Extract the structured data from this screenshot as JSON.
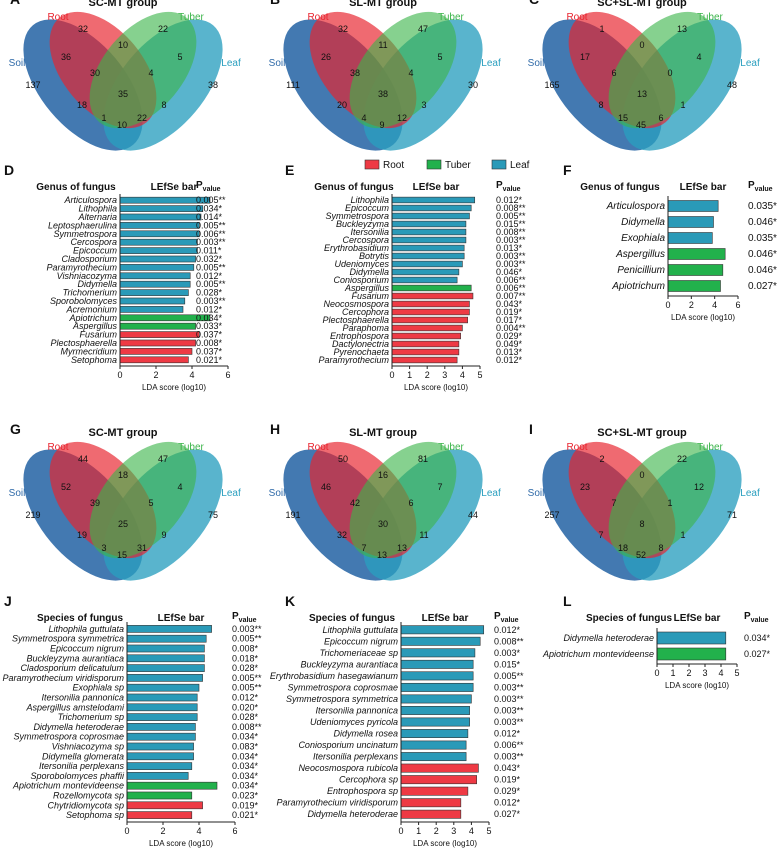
{
  "colors": {
    "root": "#e8232e",
    "tuber": "#3cb44a",
    "leaf": "#2a9fbf",
    "soil": "#2f6aa8",
    "bar_leaf": "#2a9ab8",
    "bar_tuber": "#22b14c",
    "bar_root": "#ee3a44"
  },
  "legend": {
    "root": "Root",
    "tuber": "Tuber",
    "leaf": "Leaf"
  },
  "chart_data": [
    {
      "type": "venn",
      "panel": "A",
      "title": "SC-MT group",
      "sets": {
        "root": "Root",
        "tuber": "Tuber",
        "soil": "Soil",
        "leaf": "Leaf"
      },
      "regions": {
        "root_only": "32",
        "tuber_only": "22",
        "soil_only": "137",
        "leaf_only": "38",
        "root_tuber": "10",
        "root_soil": "36",
        "tuber_leaf": "5",
        "soil_leaf": "10",
        "root_leaf": "8",
        "tuber_soil": "18",
        "root_tuber_soil": "30",
        "root_tuber_leaf": "4",
        "root_soil_leaf": "22",
        "tuber_soil_leaf": "1",
        "all": "35"
      }
    },
    {
      "type": "venn",
      "panel": "B",
      "title": "SL-MT group",
      "sets": {
        "root": "Root",
        "tuber": "Tuber",
        "soil": "Soil",
        "leaf": "Leaf"
      },
      "regions": {
        "root_only": "32",
        "tuber_only": "47",
        "soil_only": "111",
        "leaf_only": "30",
        "root_tuber": "11",
        "root_soil": "26",
        "tuber_leaf": "5",
        "soil_leaf": "9",
        "root_leaf": "3",
        "tuber_soil": "20",
        "root_tuber_soil": "38",
        "root_tuber_leaf": "4",
        "root_soil_leaf": "12",
        "tuber_soil_leaf": "4",
        "all": "38"
      }
    },
    {
      "type": "venn",
      "panel": "C",
      "title": "SC+SL-MT group",
      "sets": {
        "root": "Root",
        "tuber": "Tuber",
        "soil": "Soil",
        "leaf": "Leaf"
      },
      "regions": {
        "root_only": "1",
        "tuber_only": "13",
        "soil_only": "165",
        "leaf_only": "48",
        "root_tuber": "0",
        "root_soil": "17",
        "tuber_leaf": "4",
        "soil_leaf": "45",
        "root_leaf": "1",
        "tuber_soil": "8",
        "root_tuber_soil": "6",
        "root_tuber_leaf": "0",
        "root_soil_leaf": "6",
        "tuber_soil_leaf": "15",
        "all": "13"
      }
    },
    {
      "type": "venn",
      "panel": "G",
      "title": "SC-MT group",
      "sets": {
        "root": "Root",
        "tuber": "Tuber",
        "soil": "Soil",
        "leaf": "Leaf"
      },
      "regions": {
        "root_only": "44",
        "tuber_only": "47",
        "soil_only": "219",
        "leaf_only": "75",
        "root_tuber": "18",
        "root_soil": "52",
        "tuber_leaf": "4",
        "soil_leaf": "15",
        "root_leaf": "9",
        "tuber_soil": "19",
        "root_tuber_soil": "39",
        "root_tuber_leaf": "5",
        "root_soil_leaf": "31",
        "tuber_soil_leaf": "3",
        "all": "25"
      }
    },
    {
      "type": "venn",
      "panel": "H",
      "title": "SL-MT group",
      "sets": {
        "root": "Root",
        "tuber": "Tuber",
        "soil": "Soil",
        "leaf": "Leaf"
      },
      "regions": {
        "root_only": "50",
        "tuber_only": "81",
        "soil_only": "191",
        "leaf_only": "44",
        "root_tuber": "16",
        "root_soil": "46",
        "tuber_leaf": "7",
        "soil_leaf": "13",
        "root_leaf": "11",
        "tuber_soil": "32",
        "root_tuber_soil": "42",
        "root_tuber_leaf": "6",
        "root_soil_leaf": "13",
        "tuber_soil_leaf": "7",
        "all": "30"
      }
    },
    {
      "type": "venn",
      "panel": "I",
      "title": "SC+SL-MT group",
      "sets": {
        "root": "Root",
        "tuber": "Tuber",
        "soil": "Soil",
        "leaf": "Leaf"
      },
      "regions": {
        "root_only": "2",
        "tuber_only": "22",
        "soil_only": "257",
        "leaf_only": "71",
        "root_tuber": "0",
        "root_soil": "23",
        "tuber_leaf": "12",
        "soil_leaf": "52",
        "root_leaf": "1",
        "tuber_soil": "7",
        "root_tuber_soil": "7",
        "root_tuber_leaf": "1",
        "root_soil_leaf": "8",
        "tuber_soil_leaf": "18",
        "all": "8"
      }
    },
    {
      "type": "bar",
      "panel": "D",
      "orientation": "horizontal",
      "header": "Genus of fungus",
      "bar_header": "LEfSe bar",
      "p_header": "P",
      "p_sub": "value",
      "xlabel": "LDA score (log10)",
      "xlim": [
        0,
        6
      ],
      "ticks": [
        "0",
        "2",
        "4",
        "6"
      ],
      "rows": [
        {
          "name": "Articulospora",
          "value": 5.0,
          "group": "leaf",
          "p": "0.005**"
        },
        {
          "name": "Lithophila",
          "value": 4.6,
          "group": "leaf",
          "p": "0.034*"
        },
        {
          "name": "Alternaria",
          "value": 4.5,
          "group": "leaf",
          "p": "0.014*"
        },
        {
          "name": "Leptosphaerulina",
          "value": 4.4,
          "group": "leaf",
          "p": "0.005**"
        },
        {
          "name": "Symmetrospora",
          "value": 4.4,
          "group": "leaf",
          "p": "0.006**"
        },
        {
          "name": "Cercospora",
          "value": 4.3,
          "group": "leaf",
          "p": "0.003**"
        },
        {
          "name": "Epicoccum",
          "value": 4.3,
          "group": "leaf",
          "p": "0.011*"
        },
        {
          "name": "Cladosporium",
          "value": 4.2,
          "group": "leaf",
          "p": "0.032*"
        },
        {
          "name": "Paramyrothecium",
          "value": 4.1,
          "group": "leaf",
          "p": "0.005**"
        },
        {
          "name": "Vishniacozyma",
          "value": 3.9,
          "group": "leaf",
          "p": "0.012*"
        },
        {
          "name": "Didymella",
          "value": 3.9,
          "group": "leaf",
          "p": "0.005**"
        },
        {
          "name": "Trichomerium",
          "value": 3.8,
          "group": "leaf",
          "p": "0.028*"
        },
        {
          "name": "Sporobolomyces",
          "value": 3.6,
          "group": "leaf",
          "p": "0.003**"
        },
        {
          "name": "Acremonium",
          "value": 3.5,
          "group": "leaf",
          "p": "0.012*"
        },
        {
          "name": "Apiotrichum",
          "value": 5.0,
          "group": "tuber",
          "p": "0.034*"
        },
        {
          "name": "Aspergillus",
          "value": 4.2,
          "group": "tuber",
          "p": "0.033*"
        },
        {
          "name": "Fusarium",
          "value": 4.4,
          "group": "root",
          "p": "0.037*"
        },
        {
          "name": "Plectosphaerella",
          "value": 4.2,
          "group": "root",
          "p": "0.008*"
        },
        {
          "name": "Myrmecridium",
          "value": 4.0,
          "group": "root",
          "p": "0.037*"
        },
        {
          "name": "Setophoma",
          "value": 3.8,
          "group": "root",
          "p": "0.021*"
        }
      ]
    },
    {
      "type": "bar",
      "panel": "E",
      "orientation": "horizontal",
      "header": "Genus of fungus",
      "bar_header": "LEfSe bar",
      "p_header": "P",
      "p_sub": "value",
      "xlabel": "LDA score (log10)",
      "xlim": [
        0,
        5
      ],
      "ticks": [
        "0",
        "1",
        "2",
        "3",
        "4",
        "5"
      ],
      "rows": [
        {
          "name": "Lithophila",
          "value": 4.7,
          "group": "leaf",
          "p": "0.012*"
        },
        {
          "name": "Epicoccum",
          "value": 4.5,
          "group": "leaf",
          "p": "0.008**"
        },
        {
          "name": "Symmetrospora",
          "value": 4.4,
          "group": "leaf",
          "p": "0.005**"
        },
        {
          "name": "Buckleyzyma",
          "value": 4.2,
          "group": "leaf",
          "p": "0.015**"
        },
        {
          "name": "Itersonilia",
          "value": 4.2,
          "group": "leaf",
          "p": "0.008**"
        },
        {
          "name": "Cercospora",
          "value": 4.2,
          "group": "leaf",
          "p": "0.003**"
        },
        {
          "name": "Erythrobasidium",
          "value": 4.1,
          "group": "leaf",
          "p": "0.013*"
        },
        {
          "name": "Botrytis",
          "value": 4.1,
          "group": "leaf",
          "p": "0.003**"
        },
        {
          "name": "Udeniomyces",
          "value": 4.0,
          "group": "leaf",
          "p": "0.003**"
        },
        {
          "name": "Didymella",
          "value": 3.8,
          "group": "leaf",
          "p": "0.046*"
        },
        {
          "name": "Coniosporium",
          "value": 3.7,
          "group": "leaf",
          "p": "0.006**"
        },
        {
          "name": "Aspergillus",
          "value": 4.5,
          "group": "tuber",
          "p": "0.006**"
        },
        {
          "name": "Fusarium",
          "value": 4.6,
          "group": "root",
          "p": "0.007**"
        },
        {
          "name": "Neocosmospora",
          "value": 4.4,
          "group": "root",
          "p": "0.043*"
        },
        {
          "name": "Cercophora",
          "value": 4.4,
          "group": "root",
          "p": "0.019*"
        },
        {
          "name": "Plectosphaerella",
          "value": 4.3,
          "group": "root",
          "p": "0.017*"
        },
        {
          "name": "Paraphoma",
          "value": 4.0,
          "group": "root",
          "p": "0.004**"
        },
        {
          "name": "Entrophospora",
          "value": 3.9,
          "group": "root",
          "p": "0.029*"
        },
        {
          "name": "Dactylonectria",
          "value": 3.8,
          "group": "root",
          "p": "0.049*"
        },
        {
          "name": "Pyrenochaeta",
          "value": 3.8,
          "group": "root",
          "p": "0.013*"
        },
        {
          "name": "Paramyrothecium",
          "value": 3.7,
          "group": "root",
          "p": "0.012*"
        }
      ]
    },
    {
      "type": "bar",
      "panel": "F",
      "orientation": "horizontal",
      "header": "Genus of fungus",
      "bar_header": "LEfSe bar",
      "p_header": "P",
      "p_sub": "value",
      "xlabel": "LDA score (log10)",
      "xlim": [
        0,
        6
      ],
      "ticks": [
        "0",
        "2",
        "4",
        "6"
      ],
      "rows": [
        {
          "name": "Articulospora",
          "value": 4.3,
          "group": "leaf",
          "p": "0.035*"
        },
        {
          "name": "Didymella",
          "value": 3.9,
          "group": "leaf",
          "p": "0.046*"
        },
        {
          "name": "Exophiala",
          "value": 3.8,
          "group": "leaf",
          "p": "0.035*"
        },
        {
          "name": "Aspergillus",
          "value": 4.9,
          "group": "tuber",
          "p": "0.046*"
        },
        {
          "name": "Penicillium",
          "value": 4.7,
          "group": "tuber",
          "p": "0.046*"
        },
        {
          "name": "Apiotrichum",
          "value": 4.5,
          "group": "tuber",
          "p": "0.027*"
        }
      ]
    },
    {
      "type": "bar",
      "panel": "J",
      "orientation": "horizontal",
      "header": "Species of fungus",
      "bar_header": "LEfSe bar",
      "p_header": "P",
      "p_sub": "value",
      "xlabel": "LDA score (log10)",
      "xlim": [
        0,
        6
      ],
      "ticks": [
        "0",
        "2",
        "4",
        "6"
      ],
      "rows": [
        {
          "name": "Lithophila guttulata",
          "value": 4.7,
          "group": "leaf",
          "p": "0.003**"
        },
        {
          "name": "Symmetrospora symmetrica",
          "value": 4.4,
          "group": "leaf",
          "p": "0.005**"
        },
        {
          "name": "Epicoccum nigrum",
          "value": 4.3,
          "group": "leaf",
          "p": "0.008*"
        },
        {
          "name": "Buckleyzyma aurantiaca",
          "value": 4.3,
          "group": "leaf",
          "p": "0.018*"
        },
        {
          "name": "Cladosporium delicatulum",
          "value": 4.3,
          "group": "leaf",
          "p": "0.028*"
        },
        {
          "name": "Paramyrothecium viridisporum",
          "value": 4.2,
          "group": "leaf",
          "p": "0.005**"
        },
        {
          "name": "Exophiala sp",
          "value": 4.0,
          "group": "leaf",
          "p": "0.005**"
        },
        {
          "name": "Itersonilia pannonica",
          "value": 3.9,
          "group": "leaf",
          "p": "0.012*"
        },
        {
          "name": "Aspergillus amstelodami",
          "value": 3.9,
          "group": "leaf",
          "p": "0.020*"
        },
        {
          "name": "Trichomerium sp",
          "value": 3.9,
          "group": "leaf",
          "p": "0.028*"
        },
        {
          "name": "Didymella heteroderae",
          "value": 3.8,
          "group": "leaf",
          "p": "0.008**"
        },
        {
          "name": "Symmetrospora coprosmae",
          "value": 3.8,
          "group": "leaf",
          "p": "0.034*"
        },
        {
          "name": "Vishniacozyma sp",
          "value": 3.7,
          "group": "leaf",
          "p": "0.083*"
        },
        {
          "name": "Didymella glomerata",
          "value": 3.7,
          "group": "leaf",
          "p": "0.034*"
        },
        {
          "name": "Itersonilia perplexans",
          "value": 3.6,
          "group": "leaf",
          "p": "0.034*"
        },
        {
          "name": "Sporobolomyces phaffii",
          "value": 3.4,
          "group": "leaf",
          "p": "0.034*"
        },
        {
          "name": "Apiotrichum montevideense",
          "value": 5.0,
          "group": "tuber",
          "p": "0.034*"
        },
        {
          "name": "Rozellomycota sp",
          "value": 3.6,
          "group": "tuber",
          "p": "0.023*"
        },
        {
          "name": "Chytridiomycota sp",
          "value": 4.2,
          "group": "root",
          "p": "0.019*"
        },
        {
          "name": "Setophoma sp",
          "value": 3.6,
          "group": "root",
          "p": "0.021*"
        }
      ]
    },
    {
      "type": "bar",
      "panel": "K",
      "orientation": "horizontal",
      "header": "Species of fungus",
      "bar_header": "LEfSe bar",
      "p_header": "P",
      "p_sub": "value",
      "xlabel": "LDA score (log10)",
      "xlim": [
        0,
        5
      ],
      "ticks": [
        "0",
        "1",
        "2",
        "3",
        "4",
        "5"
      ],
      "rows": [
        {
          "name": "Lithophila guttulata",
          "value": 4.7,
          "group": "leaf",
          "p": "0.012*"
        },
        {
          "name": "Epicoccum nigrum",
          "value": 4.5,
          "group": "leaf",
          "p": "0.008**"
        },
        {
          "name": "Trichomeriaceae sp",
          "value": 4.2,
          "group": "leaf",
          "p": "0.003*"
        },
        {
          "name": "Buckleyzyma aurantiaca",
          "value": 4.1,
          "group": "leaf",
          "p": "0.015*"
        },
        {
          "name": "Erythrobasidium hasegawianum",
          "value": 4.1,
          "group": "leaf",
          "p": "0.005**"
        },
        {
          "name": "Symmetrospora coprosmae",
          "value": 4.1,
          "group": "leaf",
          "p": "0.003**"
        },
        {
          "name": "Symmetrospora symmetrica",
          "value": 4.0,
          "group": "leaf",
          "p": "0.003**"
        },
        {
          "name": "Itersonilia pannonica",
          "value": 3.9,
          "group": "leaf",
          "p": "0.003**"
        },
        {
          "name": "Udeniomyces pyricola",
          "value": 3.9,
          "group": "leaf",
          "p": "0.003**"
        },
        {
          "name": "Didymella rosea",
          "value": 3.8,
          "group": "leaf",
          "p": "0.012*"
        },
        {
          "name": "Coniosporium uncinatum",
          "value": 3.7,
          "group": "leaf",
          "p": "0.006**"
        },
        {
          "name": "Itersonilia perplexans",
          "value": 3.7,
          "group": "leaf",
          "p": "0.003**"
        },
        {
          "name": "Neocosmospora rubicola",
          "value": 4.4,
          "group": "root",
          "p": "0.043*"
        },
        {
          "name": "Cercophora sp",
          "value": 4.3,
          "group": "root",
          "p": "0.019*"
        },
        {
          "name": "Entrophospora sp",
          "value": 3.8,
          "group": "root",
          "p": "0.029*"
        },
        {
          "name": "Paramyrothecium viridisporum",
          "value": 3.4,
          "group": "root",
          "p": "0.012*"
        },
        {
          "name": "Didymella heteroderae",
          "value": 3.4,
          "group": "root",
          "p": "0.027*"
        }
      ]
    },
    {
      "type": "bar",
      "panel": "L",
      "orientation": "horizontal",
      "header": "Species of fungus",
      "bar_header": "LEfSe bar",
      "p_header": "P",
      "p_sub": "value",
      "xlabel": "LDA score (log10)",
      "xlim": [
        0,
        5
      ],
      "ticks": [
        "0",
        "1",
        "2",
        "3",
        "4",
        "5"
      ],
      "rows": [
        {
          "name": "Didymella heteroderae",
          "value": 4.3,
          "group": "leaf",
          "p": "0.034*"
        },
        {
          "name": "Apiotrichum montevideense",
          "value": 4.3,
          "group": "tuber",
          "p": "0.027*"
        }
      ]
    }
  ]
}
